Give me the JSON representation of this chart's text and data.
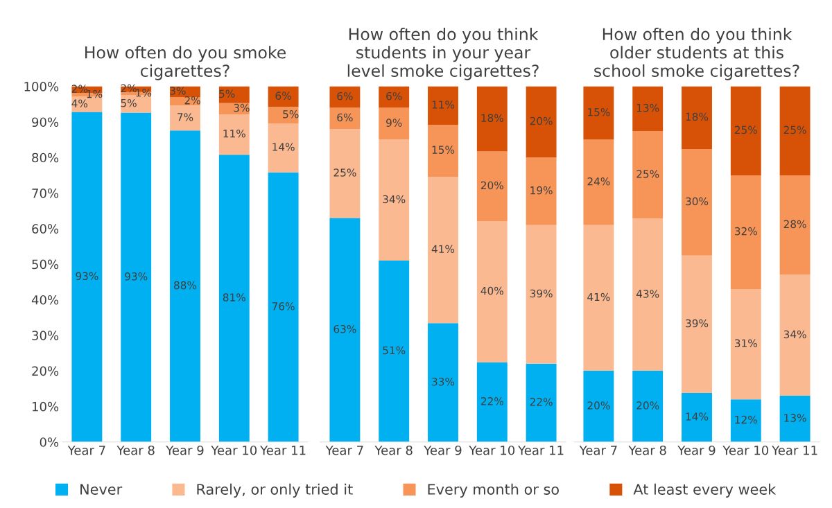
{
  "chart_data": [
    {
      "type": "bar",
      "stacked": true,
      "title": "How often do you smoke\ncigarettes?",
      "categories": [
        "Year 7",
        "Year 8",
        "Year 9",
        "Year 10",
        "Year 11"
      ],
      "ylim": [
        0,
        100
      ],
      "yticks": [
        {
          "value": 0,
          "label": "0%"
        },
        {
          "value": 10,
          "label": "10%"
        },
        {
          "value": 20,
          "label": "20%"
        },
        {
          "value": 30,
          "label": "30%"
        },
        {
          "value": 40,
          "label": "40%"
        },
        {
          "value": 50,
          "label": "50%"
        },
        {
          "value": 60,
          "label": "60%"
        },
        {
          "value": 70,
          "label": "70%"
        },
        {
          "value": 80,
          "label": "80%"
        },
        {
          "value": 90,
          "label": "90%"
        },
        {
          "value": 100,
          "label": "100%"
        }
      ],
      "legend": "bottom",
      "series": [
        {
          "name": "Never",
          "color": "#00b0f0",
          "values": [
            92.8,
            92.6,
            87.6,
            80.8,
            75.8
          ],
          "value_labels": [
            "93%",
            "93%",
            "88%",
            "81%",
            "76%"
          ]
        },
        {
          "name": "Rarely, or only tried it",
          "color": "#fbb991",
          "values": [
            4.3,
            4.9,
            7.0,
            11.3,
            13.8
          ],
          "value_labels": [
            "4%",
            "5%",
            "7%",
            "11%",
            "14%"
          ]
        },
        {
          "name": "Every month or so",
          "color": "#f79457",
          "values": [
            1.0,
            0.9,
            2.4,
            3.2,
            4.6
          ],
          "value_labels": [
            "1%",
            "1%",
            "2%",
            "3%",
            "5%"
          ]
        },
        {
          "name": "At least every week",
          "color": "#d75207",
          "values": [
            1.9,
            1.6,
            3.0,
            4.7,
            5.8
          ],
          "value_labels": [
            "2%",
            "2%",
            "3%",
            "5%",
            "6%"
          ]
        }
      ]
    },
    {
      "type": "bar",
      "stacked": true,
      "title": "How often do you think\nstudents in your year\nlevel smoke cigarettes?",
      "categories": [
        "Year 7",
        "Year 8",
        "Year 9",
        "Year 10",
        "Year 11"
      ],
      "ylim": [
        0,
        100
      ],
      "tick_labels": "x",
      "legend": "bottom",
      "series": [
        {
          "name": "Never",
          "color": "#00b0f0",
          "values": [
            63,
            51,
            33.4,
            22.4,
            22
          ],
          "value_labels": [
            "63%",
            "51%",
            "33%",
            "22%",
            "22%"
          ]
        },
        {
          "name": "Rarely, or only tried it",
          "color": "#fbb991",
          "values": [
            25,
            34,
            41.2,
            39.7,
            39
          ],
          "value_labels": [
            "25%",
            "34%",
            "41%",
            "40%",
            "39%"
          ]
        },
        {
          "name": "Every month or so",
          "color": "#f79457",
          "values": [
            6,
            9,
            14.6,
            19.6,
            19
          ],
          "value_labels": [
            "6%",
            "9%",
            "15%",
            "20%",
            "19%"
          ]
        },
        {
          "name": "At least every week",
          "color": "#d75207",
          "values": [
            6,
            6,
            10.8,
            18.3,
            20
          ],
          "value_labels": [
            "6%",
            "6%",
            "11%",
            "18%",
            "20%"
          ]
        }
      ]
    },
    {
      "type": "bar",
      "stacked": true,
      "title": "How often do you think\nolder students at this\nschool smoke cigarettes?",
      "categories": [
        "Year 7",
        "Year 8",
        "Year 9",
        "Year 10",
        "Year 11"
      ],
      "ylim": [
        0,
        100
      ],
      "tick_labels": "x",
      "legend": "bottom",
      "series": [
        {
          "name": "Never",
          "color": "#00b0f0",
          "values": [
            20,
            20.0,
            13.8,
            12,
            13
          ],
          "value_labels": [
            "20%",
            "20%",
            "14%",
            "12%",
            "13%"
          ]
        },
        {
          "name": "Rarely, or only tried it",
          "color": "#fbb991",
          "values": [
            41,
            42.8,
            38.6,
            31,
            34
          ],
          "value_labels": [
            "41%",
            "43%",
            "39%",
            "31%",
            "34%"
          ]
        },
        {
          "name": "Every month or so",
          "color": "#f79457",
          "values": [
            24,
            24.6,
            30.0,
            32,
            28
          ],
          "value_labels": [
            "24%",
            "25%",
            "30%",
            "32%",
            "28%"
          ]
        },
        {
          "name": "At least every week",
          "color": "#d75207",
          "values": [
            15,
            12.6,
            17.6,
            25,
            25
          ],
          "value_labels": [
            "15%",
            "13%",
            "18%",
            "25%",
            "25%"
          ]
        }
      ]
    }
  ]
}
